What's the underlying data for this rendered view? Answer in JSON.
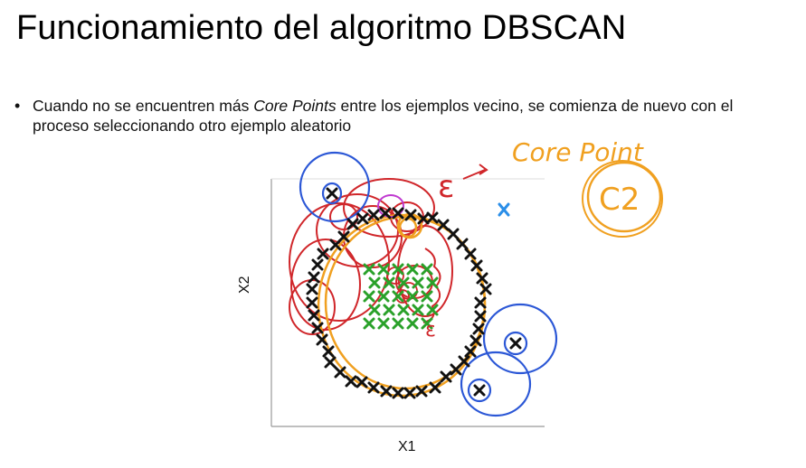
{
  "slide": {
    "title": "Funcionamiento del algoritmo DBSCAN",
    "bullet": {
      "before": "Cuando no se encuentren más ",
      "emphasis": "Core Points",
      "after": " entre los ejemplos vecino, se comienza de nuevo con el proceso seleccionando otro ejemplo aleatorio"
    }
  },
  "plot": {
    "x_axis_label": "X1",
    "y_axis_label": "X2"
  },
  "annotations": {
    "epsilon": "ε",
    "core_point": "Core Point",
    "cluster_label": "C2",
    "small_epsilon": "ε"
  },
  "colors": {
    "black_points": "#111111",
    "green_points": "#2aa12a",
    "blue_point": "#2a8ee8",
    "red_ink": "#d0262a",
    "orange_ink": "#f0a020",
    "blue_ink": "#2b57d6",
    "magenta_ink": "#c03ad0"
  }
}
